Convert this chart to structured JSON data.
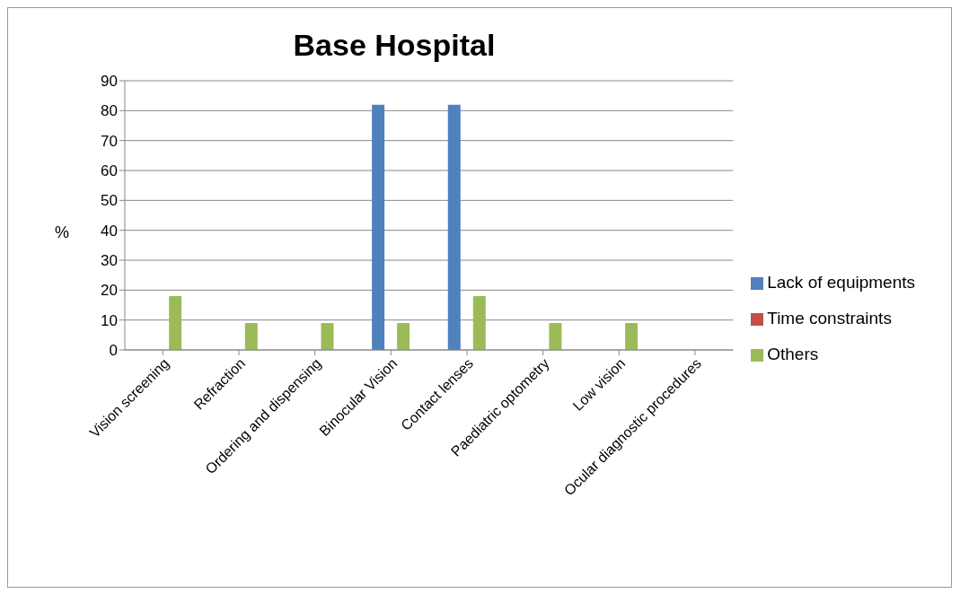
{
  "chart_data": {
    "type": "bar",
    "title": "Base Hospital",
    "ylabel": "%",
    "categories": [
      "Vision screening",
      "Refraction",
      "Ordering and dispensing",
      "Binocular Vision",
      "Contact lenses",
      "Paediatric optometry",
      "Low vision",
      "Ocular diagnostic procedures"
    ],
    "series": [
      {
        "name": "Lack of equipments",
        "color": "#4f81bd",
        "values": [
          0,
          0,
          0,
          82,
          82,
          0,
          0,
          0
        ]
      },
      {
        "name": "Time constraints",
        "color": "#c0504d",
        "values": [
          0,
          0,
          0,
          0,
          0,
          0,
          0,
          0
        ]
      },
      {
        "name": "Others",
        "color": "#9bbb59",
        "values": [
          18,
          9,
          9,
          9,
          18,
          9,
          9,
          0
        ]
      }
    ],
    "ylim": [
      0,
      90
    ],
    "yticks": [
      0,
      10,
      20,
      30,
      40,
      50,
      60,
      70,
      80,
      90
    ],
    "grid": "y",
    "legend": "right"
  }
}
